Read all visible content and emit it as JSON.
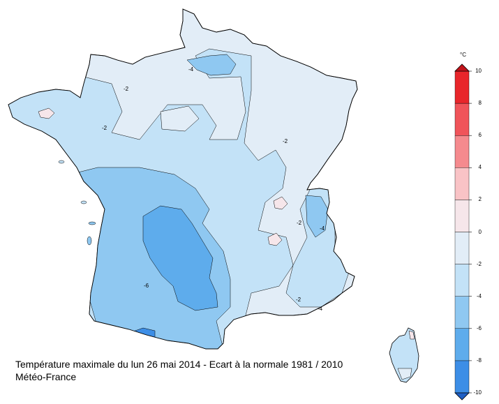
{
  "caption": {
    "line1": "Température maximale du lun 26 mai 2014 - Ecart à la normale 1981 / 2010",
    "line2": "Météo-France"
  },
  "legend": {
    "unit": "°C",
    "ticks": [
      "10",
      "8",
      "6",
      "4",
      "2",
      "0",
      "-2",
      "-4",
      "-6",
      "-8",
      "-10"
    ],
    "bands": [
      {
        "from": 8,
        "to": 10,
        "color": "#e8262b"
      },
      {
        "from": 6,
        "to": 8,
        "color": "#f0545a"
      },
      {
        "from": 4,
        "to": 6,
        "color": "#f58a8e"
      },
      {
        "from": 2,
        "to": 4,
        "color": "#f9c3c6"
      },
      {
        "from": 0,
        "to": 2,
        "color": "#f6e6ea"
      },
      {
        "from": -2,
        "to": 0,
        "color": "#e2edf7"
      },
      {
        "from": -4,
        "to": -2,
        "color": "#c3e2f7"
      },
      {
        "from": -6,
        "to": -4,
        "color": "#8fc8f1"
      },
      {
        "from": -8,
        "to": -6,
        "color": "#5eacec"
      },
      {
        "from": -10,
        "to": -8,
        "color": "#3d8ee6"
      }
    ],
    "arrow_top_color": "#c1141b",
    "arrow_bottom_color": "#1f5fc4"
  },
  "map": {
    "contour_labels": [
      "-4",
      "-2",
      "-2",
      "-4",
      "-4",
      "-2",
      "-6",
      "-2",
      "-2"
    ]
  }
}
